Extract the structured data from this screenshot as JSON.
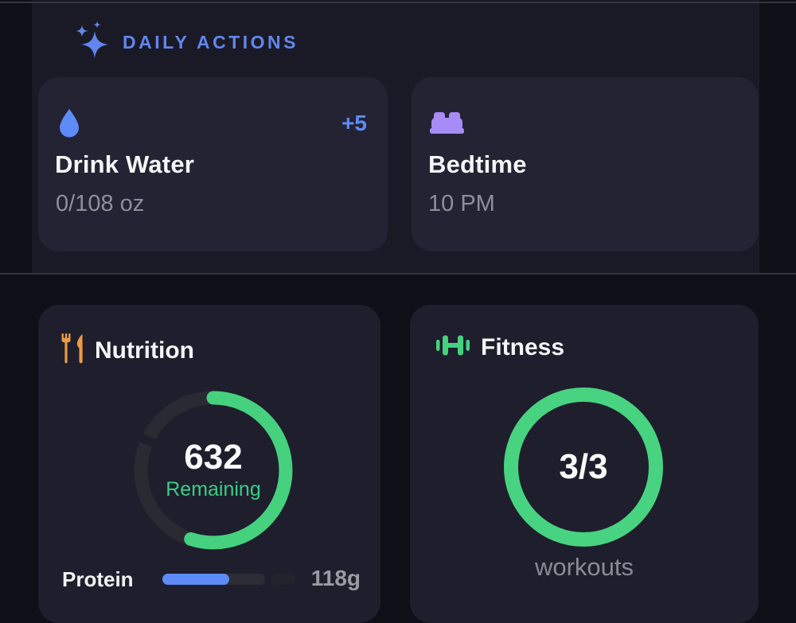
{
  "header": {
    "title": "DAILY ACTIONS"
  },
  "daily": {
    "water": {
      "title": "Drink Water",
      "value": "0/108 oz",
      "badge": "+5"
    },
    "bedtime": {
      "title": "Bedtime",
      "value": "10 PM"
    }
  },
  "nutrition": {
    "title": "Nutrition",
    "remaining_value": "632",
    "remaining_label": "Remaining",
    "ring_percent": 55,
    "protein": {
      "label": "Protein",
      "value": "118g",
      "fill_percent": 50
    }
  },
  "fitness": {
    "title": "Fitness",
    "value": "3/3",
    "label": "workouts",
    "ring_percent": 100
  },
  "icons": {
    "header": "sparkles-icon",
    "water": "water-drop-icon",
    "bedtime": "bed-icon",
    "nutrition": "utensils-icon",
    "fitness": "dumbbell-icon"
  },
  "colors": {
    "accent_blue": "#5d8bf7",
    "header_blue": "#6286ee",
    "accent_purple": "#a78bf6",
    "accent_orange": "#ec9a43",
    "accent_green": "#45d17e",
    "text_secondary": "#8f8f99"
  }
}
